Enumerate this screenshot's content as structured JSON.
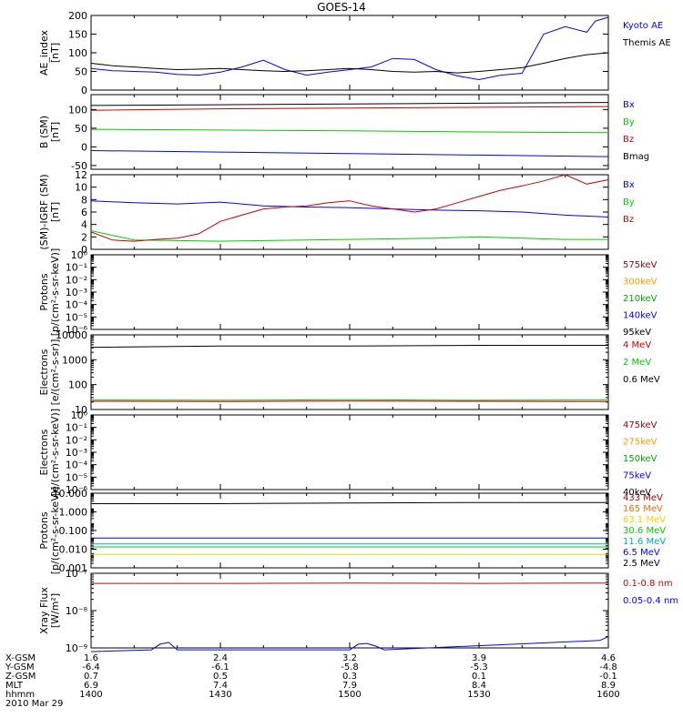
{
  "title": "GOES-14",
  "ephemeris": {
    "labels": [
      "X-GSM",
      "Y-GSM",
      "Z-GSM",
      "MLT",
      "hhmm"
    ],
    "date": "2010 Mar 29",
    "columns": [
      [
        "1.6",
        "-6.4",
        "0.7",
        "6.9",
        "1400"
      ],
      [
        "2.4",
        "-6.1",
        "0.5",
        "7.4",
        "1430"
      ],
      [
        "3.2",
        "-5.8",
        "0.3",
        "7.9",
        "1500"
      ],
      [
        "3.9",
        "-5.3",
        "0.1",
        "8.4",
        "1530"
      ],
      [
        "4.6",
        "-4.8",
        "-0.1",
        "8.9",
        "1600"
      ]
    ]
  },
  "chart_data": [
    {
      "type": "line",
      "ylabel": "AE_index\n[nT]",
      "ylim": [
        0,
        200
      ],
      "yticks": [
        "0",
        "50",
        "100",
        "150",
        "200"
      ],
      "series": [
        {
          "name": "Kyoto AE",
          "color": "#0000ff",
          "x": [
            0,
            5,
            10,
            15,
            20,
            25,
            30,
            35,
            40,
            45,
            50,
            55,
            60,
            65,
            70,
            75,
            80,
            85,
            90,
            95,
            100,
            105,
            110,
            115,
            117,
            120
          ],
          "y": [
            58,
            52,
            50,
            48,
            42,
            40,
            48,
            62,
            80,
            55,
            40,
            48,
            55,
            62,
            85,
            82,
            55,
            38,
            28,
            40,
            45,
            150,
            170,
            155,
            185,
            195
          ]
        },
        {
          "name": "Themis AE",
          "color": "#000000",
          "x": [
            0,
            5,
            10,
            15,
            20,
            25,
            30,
            35,
            40,
            45,
            50,
            55,
            60,
            65,
            70,
            75,
            80,
            85,
            90,
            95,
            100,
            105,
            110,
            115,
            120
          ],
          "y": [
            72,
            65,
            62,
            58,
            55,
            56,
            58,
            55,
            52,
            50,
            52,
            55,
            58,
            55,
            50,
            48,
            50,
            46,
            50,
            55,
            60,
            72,
            85,
            95,
            100
          ]
        }
      ]
    },
    {
      "type": "line",
      "ylabel": "B (SM)\n[nT]",
      "ylim": [
        -60,
        140
      ],
      "yticks": [
        "-50",
        "0",
        "50",
        "100"
      ],
      "series": [
        {
          "name": "Bx",
          "color": "#0000ff",
          "x": [
            0,
            30,
            60,
            90,
            120
          ],
          "y": [
            -10,
            -14,
            -18,
            -22,
            -26
          ]
        },
        {
          "name": "By",
          "color": "#00cc00",
          "x": [
            0,
            30,
            60,
            90,
            120
          ],
          "y": [
            47,
            45,
            43,
            40,
            38
          ]
        },
        {
          "name": "Bz",
          "color": "#cc0000",
          "x": [
            0,
            30,
            60,
            90,
            120
          ],
          "y": [
            98,
            102,
            104,
            106,
            108
          ]
        },
        {
          "name": "Bmag",
          "color": "#000000",
          "x": [
            0,
            30,
            60,
            90,
            120
          ],
          "y": [
            111,
            113,
            115,
            117,
            119
          ]
        }
      ]
    },
    {
      "type": "line",
      "ylabel": "(SM)-IGRF (SM)\n[nT]",
      "ylim": [
        0,
        12
      ],
      "yticks": [
        "0",
        "2",
        "4",
        "6",
        "8",
        "10",
        "12"
      ],
      "series": [
        {
          "name": "Bx",
          "color": "#0000ff",
          "x": [
            0,
            10,
            20,
            30,
            40,
            50,
            60,
            70,
            80,
            90,
            100,
            110,
            120
          ],
          "y": [
            7.8,
            7.5,
            7.3,
            7.6,
            7.0,
            6.8,
            6.7,
            6.5,
            6.3,
            6.2,
            6.0,
            5.5,
            5.2
          ]
        },
        {
          "name": "By",
          "color": "#00cc00",
          "x": [
            0,
            10,
            20,
            30,
            40,
            50,
            60,
            70,
            80,
            90,
            100,
            110,
            120
          ],
          "y": [
            3.0,
            1.5,
            1.4,
            1.3,
            1.4,
            1.5,
            1.6,
            1.7,
            1.8,
            2.0,
            1.8,
            1.6,
            1.6
          ]
        },
        {
          "name": "Bz",
          "color": "#cc0000",
          "x": [
            0,
            5,
            10,
            15,
            20,
            25,
            30,
            35,
            40,
            45,
            50,
            55,
            60,
            65,
            70,
            75,
            80,
            85,
            90,
            95,
            100,
            105,
            110,
            115,
            120
          ],
          "y": [
            2.8,
            1.5,
            1.3,
            1.6,
            1.8,
            2.5,
            4.5,
            5.5,
            6.5,
            6.8,
            7.0,
            7.5,
            7.8,
            7.0,
            6.5,
            6.0,
            6.5,
            7.5,
            8.5,
            9.5,
            10.2,
            11.0,
            12.0,
            10.5,
            11.2
          ]
        }
      ]
    },
    {
      "type": "line",
      "ylabel": "Protons\n[p/(cm²-s-sr-keV)]",
      "ylim": [
        -6,
        0
      ],
      "log": true,
      "yticks": [
        "10⁻⁶",
        "10⁻⁵",
        "10⁻⁴",
        "10⁻³",
        "10⁻²",
        "10⁻¹",
        "10⁰"
      ],
      "series": [
        {
          "name": "575keV",
          "color": "#990000",
          "x": [],
          "y": []
        },
        {
          "name": "300keV",
          "color": "#ff9900",
          "x": [],
          "y": []
        },
        {
          "name": "210keV",
          "color": "#00aa00",
          "x": [],
          "y": []
        },
        {
          "name": "140keV",
          "color": "#0000ff",
          "x": [],
          "y": []
        },
        {
          "name": "95keV",
          "color": "#000000",
          "x": [],
          "y": []
        }
      ]
    },
    {
      "type": "line",
      "ylabel": "Electrons\n[e/(cm²-s-sr)]",
      "ylim": [
        1,
        4
      ],
      "log": true,
      "yticks": [
        "10",
        "100",
        "1000",
        "10000"
      ],
      "series": [
        {
          "name": "4 MeV",
          "color": "#cc0000",
          "x": [
            0,
            30,
            60,
            90,
            120
          ],
          "y": [
            1.33,
            1.32,
            1.34,
            1.33,
            1.32
          ]
        },
        {
          "name": "2 MeV",
          "color": "#00cc00",
          "x": [
            0,
            30,
            60,
            90,
            120
          ],
          "y": [
            1.38,
            1.37,
            1.39,
            1.37,
            1.38
          ]
        },
        {
          "name": "0.6 MeV",
          "color": "#000000",
          "x": [
            0,
            30,
            60,
            90,
            120
          ],
          "y": [
            3.5,
            3.55,
            3.55,
            3.58,
            3.58
          ]
        }
      ]
    },
    {
      "type": "line",
      "ylabel": "Electrons\n[e/(cm²-s-sr-keV)]",
      "ylim": [
        -6,
        0
      ],
      "log": true,
      "yticks": [
        "10⁻⁶",
        "10⁻⁵",
        "10⁻⁴",
        "10⁻³",
        "10⁻²",
        "10⁻¹",
        "10⁰"
      ],
      "series": [
        {
          "name": "475keV",
          "color": "#990000",
          "x": [],
          "y": []
        },
        {
          "name": "275keV",
          "color": "#ff9900",
          "x": [],
          "y": []
        },
        {
          "name": "150keV",
          "color": "#00aa00",
          "x": [],
          "y": []
        },
        {
          "name": "75keV",
          "color": "#0000ff",
          "x": [],
          "y": []
        },
        {
          "name": "40keV",
          "color": "#000000",
          "x": [],
          "y": []
        }
      ]
    },
    {
      "type": "line",
      "ylabel": "Protons\n[p/(cm²-s-sr-keV)]",
      "ylim": [
        -3,
        2
      ],
      "log": true,
      "yticks": [
        "0.001",
        "0.010",
        "0.100",
        "1.000",
        "10.000"
      ],
      "series": [
        {
          "name": "433 MeV",
          "color": "#990000",
          "x": [],
          "y": []
        },
        {
          "name": "165 MeV",
          "color": "#ff6600",
          "x": [],
          "y": []
        },
        {
          "name": "63.1 MeV",
          "color": "#ffcc00",
          "x": [
            0,
            30,
            60,
            90,
            120
          ],
          "y": [
            -2.1,
            -2.1,
            -2.1,
            -2.1,
            -2.1
          ]
        },
        {
          "name": "30.6 MeV",
          "color": "#00cc00",
          "x": [
            0,
            30,
            60,
            90,
            120
          ],
          "y": [
            -1.6,
            -1.6,
            -1.6,
            -1.6,
            -1.6
          ]
        },
        {
          "name": "11.6 MeV",
          "color": "#00aacc",
          "x": [
            0,
            30,
            60,
            90,
            120
          ],
          "y": [
            -1.4,
            -1.4,
            -1.4,
            -1.4,
            -1.4
          ]
        },
        {
          "name": "6.5 MeV",
          "color": "#0000ff",
          "x": [
            0,
            30,
            60,
            90,
            120
          ],
          "y": [
            -1.0,
            -1.0,
            -1.0,
            -1.0,
            -1.0
          ]
        },
        {
          "name": "2.5 MeV",
          "color": "#000000",
          "x": [
            0,
            30,
            60,
            90,
            120
          ],
          "y": [
            1.3,
            1.3,
            1.35,
            1.38,
            1.38
          ]
        }
      ]
    },
    {
      "type": "line",
      "ylabel": "Xray Flux\n[W/m²]",
      "ylim": [
        -9,
        -7
      ],
      "log": true,
      "yticks": [
        "10⁻⁹",
        "10⁻⁸",
        "10⁻⁷"
      ],
      "series": [
        {
          "name": "0.1-0.8 nm",
          "color": "#cc0000",
          "x": [
            0,
            30,
            60,
            90,
            120
          ],
          "y": [
            -7.27,
            -7.27,
            -7.26,
            -7.27,
            -7.26
          ]
        },
        {
          "name": "0.05-0.4 nm",
          "color": "#0000ff",
          "x": [
            0,
            14,
            16,
            18,
            20,
            60,
            62,
            64,
            66,
            68,
            118,
            120
          ],
          "y": [
            -9.1,
            -9.05,
            -8.9,
            -8.85,
            -9.05,
            -9.05,
            -8.9,
            -8.88,
            -8.95,
            -9.05,
            -8.8,
            -8.7
          ]
        }
      ]
    }
  ]
}
